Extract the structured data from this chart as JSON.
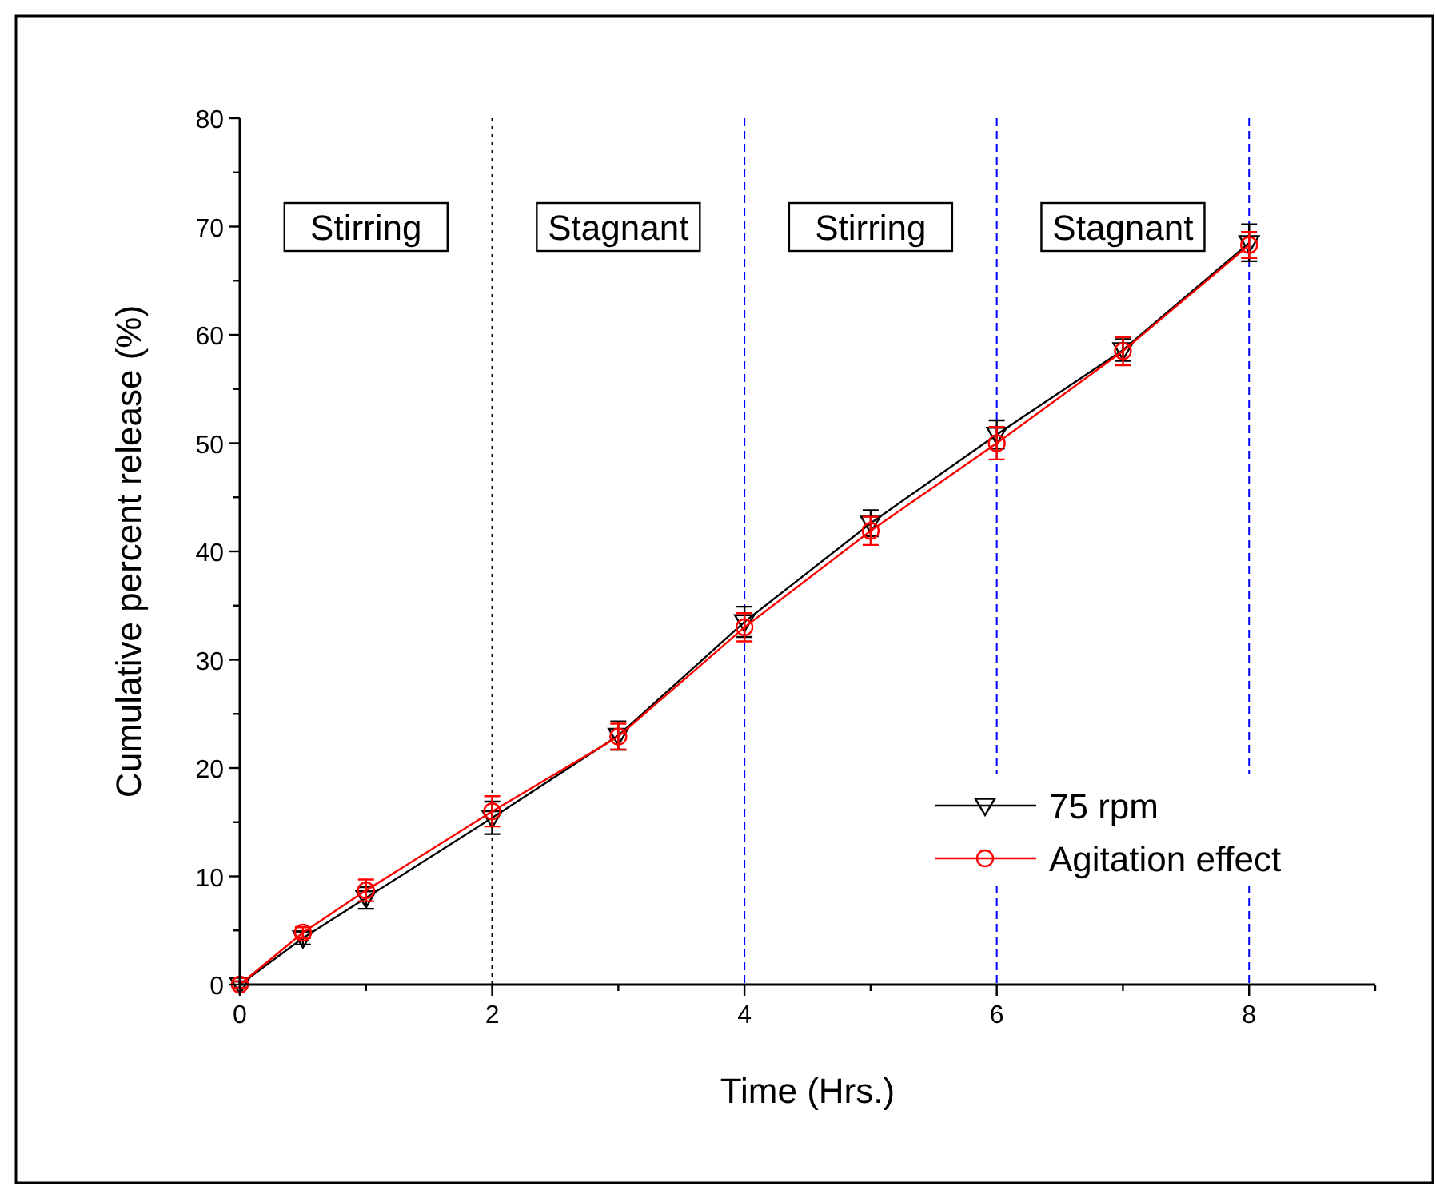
{
  "chart_data": {
    "type": "line",
    "xlabel": "Time (Hrs.)",
    "ylabel": "Cumulative percent release (%)",
    "x": [
      0,
      0.5,
      1,
      2,
      3,
      4,
      5,
      6,
      7,
      8
    ],
    "series": [
      {
        "name": "75 rpm",
        "color": "#000000",
        "marker": "triangle",
        "values": [
          0,
          4.3,
          8.0,
          15.4,
          23.0,
          33.5,
          42.6,
          50.8,
          58.6,
          68.5
        ],
        "errors": [
          0.3,
          0.6,
          1.0,
          1.5,
          1.3,
          1.4,
          1.2,
          1.3,
          1.0,
          1.7
        ]
      },
      {
        "name": "Agitation effect",
        "color": "#ff0000",
        "marker": "circle",
        "values": [
          0,
          4.8,
          8.7,
          16.0,
          22.9,
          33.0,
          41.9,
          50.0,
          58.5,
          68.3
        ],
        "errors": [
          0.3,
          0.5,
          1.0,
          1.4,
          1.2,
          1.3,
          1.3,
          1.5,
          1.3,
          1.2
        ]
      }
    ],
    "xlim": [
      0,
      9
    ],
    "ylim": [
      0,
      80
    ],
    "xticks": [
      0,
      {
        "value": 1,
        "label": null
      },
      2,
      {
        "value": 3,
        "label": null
      },
      4,
      {
        "value": 5,
        "label": null
      },
      6,
      {
        "value": 7,
        "label": null
      },
      8,
      {
        "value": 9,
        "label": null
      }
    ],
    "yticks": [
      0,
      {
        "value": 5,
        "label": null
      },
      10,
      {
        "value": 15,
        "label": null
      },
      20,
      {
        "value": 25,
        "label": null
      },
      30,
      {
        "value": 35,
        "label": null
      },
      40,
      {
        "value": 45,
        "label": null
      },
      50,
      {
        "value": 55,
        "label": null
      },
      60,
      {
        "value": 65,
        "label": null
      },
      70,
      {
        "value": 75,
        "label": null
      },
      80
    ],
    "ref_lines": [
      {
        "axis": "x",
        "value": 2,
        "color": "#000000",
        "line_style": "dotted"
      },
      {
        "axis": "x",
        "value": 4,
        "color": "#0000ff",
        "line_style": "dashed"
      },
      {
        "axis": "x",
        "value": 6,
        "color": "#0000ff",
        "line_style": "dashed"
      },
      {
        "axis": "x",
        "value": 8,
        "color": "#0000ff",
        "line_style": "dashed"
      }
    ],
    "annotations": [
      "Stirring",
      "Stagnant",
      "Stirring",
      "Stagnant"
    ],
    "grid": false,
    "legend": "bottom right",
    "line_style": "solid"
  }
}
